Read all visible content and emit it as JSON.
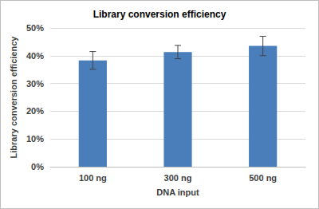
{
  "chart_data": {
    "type": "bar",
    "title": "Library conversion efficiency",
    "x_label": "DNA input",
    "y_label": "Library conversion efficiency",
    "categories": [
      "100 ng",
      "300 ng",
      "500 ng"
    ],
    "values": [
      38.3,
      41.3,
      43.5
    ],
    "errors": [
      3.2,
      2.4,
      3.5
    ],
    "color": "#4a7ebb",
    "ylim": [
      0,
      50
    ],
    "yticks": [
      {
        "value": 0,
        "label": "0%"
      },
      {
        "value": 10,
        "label": "10%"
      },
      {
        "value": 20,
        "label": "20%"
      },
      {
        "value": 30,
        "label": "30%"
      },
      {
        "value": 40,
        "label": "40%"
      },
      {
        "value": 50,
        "label": "50%"
      }
    ],
    "grid": true
  }
}
